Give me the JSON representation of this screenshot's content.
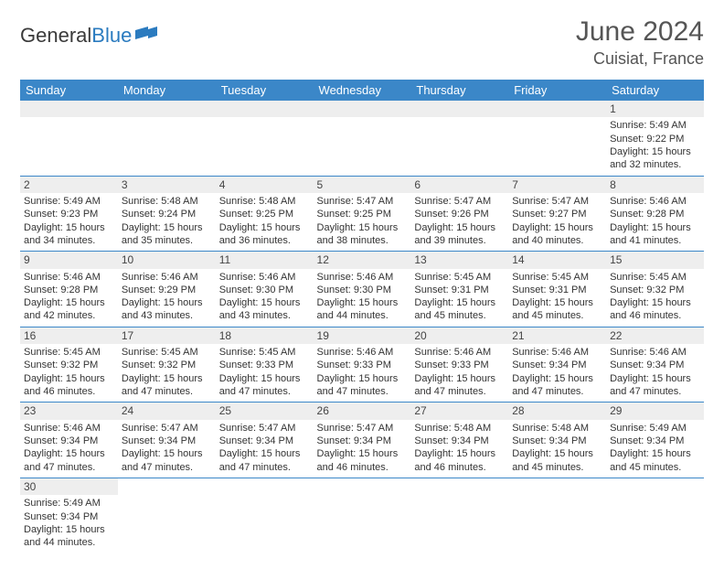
{
  "brand": {
    "general": "General",
    "blue": "Blue"
  },
  "title": {
    "month": "June 2024",
    "location": "Cuisiat, France"
  },
  "colors": {
    "header_bg": "#3b87c8",
    "header_text": "#ffffff",
    "daynum_bg": "#eeeeee",
    "cell_border": "#3b87c8",
    "logo_blue": "#2b7bbf"
  },
  "weekdays": [
    "Sunday",
    "Monday",
    "Tuesday",
    "Wednesday",
    "Thursday",
    "Friday",
    "Saturday"
  ],
  "weeks": [
    [
      {
        "blank": true
      },
      {
        "blank": true
      },
      {
        "blank": true
      },
      {
        "blank": true
      },
      {
        "blank": true
      },
      {
        "blank": true
      },
      {
        "day": "1",
        "sunrise": "Sunrise: 5:49 AM",
        "sunset": "Sunset: 9:22 PM",
        "daylight1": "Daylight: 15 hours",
        "daylight2": "and 32 minutes."
      }
    ],
    [
      {
        "day": "2",
        "sunrise": "Sunrise: 5:49 AM",
        "sunset": "Sunset: 9:23 PM",
        "daylight1": "Daylight: 15 hours",
        "daylight2": "and 34 minutes."
      },
      {
        "day": "3",
        "sunrise": "Sunrise: 5:48 AM",
        "sunset": "Sunset: 9:24 PM",
        "daylight1": "Daylight: 15 hours",
        "daylight2": "and 35 minutes."
      },
      {
        "day": "4",
        "sunrise": "Sunrise: 5:48 AM",
        "sunset": "Sunset: 9:25 PM",
        "daylight1": "Daylight: 15 hours",
        "daylight2": "and 36 minutes."
      },
      {
        "day": "5",
        "sunrise": "Sunrise: 5:47 AM",
        "sunset": "Sunset: 9:25 PM",
        "daylight1": "Daylight: 15 hours",
        "daylight2": "and 38 minutes."
      },
      {
        "day": "6",
        "sunrise": "Sunrise: 5:47 AM",
        "sunset": "Sunset: 9:26 PM",
        "daylight1": "Daylight: 15 hours",
        "daylight2": "and 39 minutes."
      },
      {
        "day": "7",
        "sunrise": "Sunrise: 5:47 AM",
        "sunset": "Sunset: 9:27 PM",
        "daylight1": "Daylight: 15 hours",
        "daylight2": "and 40 minutes."
      },
      {
        "day": "8",
        "sunrise": "Sunrise: 5:46 AM",
        "sunset": "Sunset: 9:28 PM",
        "daylight1": "Daylight: 15 hours",
        "daylight2": "and 41 minutes."
      }
    ],
    [
      {
        "day": "9",
        "sunrise": "Sunrise: 5:46 AM",
        "sunset": "Sunset: 9:28 PM",
        "daylight1": "Daylight: 15 hours",
        "daylight2": "and 42 minutes."
      },
      {
        "day": "10",
        "sunrise": "Sunrise: 5:46 AM",
        "sunset": "Sunset: 9:29 PM",
        "daylight1": "Daylight: 15 hours",
        "daylight2": "and 43 minutes."
      },
      {
        "day": "11",
        "sunrise": "Sunrise: 5:46 AM",
        "sunset": "Sunset: 9:30 PM",
        "daylight1": "Daylight: 15 hours",
        "daylight2": "and 43 minutes."
      },
      {
        "day": "12",
        "sunrise": "Sunrise: 5:46 AM",
        "sunset": "Sunset: 9:30 PM",
        "daylight1": "Daylight: 15 hours",
        "daylight2": "and 44 minutes."
      },
      {
        "day": "13",
        "sunrise": "Sunrise: 5:45 AM",
        "sunset": "Sunset: 9:31 PM",
        "daylight1": "Daylight: 15 hours",
        "daylight2": "and 45 minutes."
      },
      {
        "day": "14",
        "sunrise": "Sunrise: 5:45 AM",
        "sunset": "Sunset: 9:31 PM",
        "daylight1": "Daylight: 15 hours",
        "daylight2": "and 45 minutes."
      },
      {
        "day": "15",
        "sunrise": "Sunrise: 5:45 AM",
        "sunset": "Sunset: 9:32 PM",
        "daylight1": "Daylight: 15 hours",
        "daylight2": "and 46 minutes."
      }
    ],
    [
      {
        "day": "16",
        "sunrise": "Sunrise: 5:45 AM",
        "sunset": "Sunset: 9:32 PM",
        "daylight1": "Daylight: 15 hours",
        "daylight2": "and 46 minutes."
      },
      {
        "day": "17",
        "sunrise": "Sunrise: 5:45 AM",
        "sunset": "Sunset: 9:32 PM",
        "daylight1": "Daylight: 15 hours",
        "daylight2": "and 47 minutes."
      },
      {
        "day": "18",
        "sunrise": "Sunrise: 5:45 AM",
        "sunset": "Sunset: 9:33 PM",
        "daylight1": "Daylight: 15 hours",
        "daylight2": "and 47 minutes."
      },
      {
        "day": "19",
        "sunrise": "Sunrise: 5:46 AM",
        "sunset": "Sunset: 9:33 PM",
        "daylight1": "Daylight: 15 hours",
        "daylight2": "and 47 minutes."
      },
      {
        "day": "20",
        "sunrise": "Sunrise: 5:46 AM",
        "sunset": "Sunset: 9:33 PM",
        "daylight1": "Daylight: 15 hours",
        "daylight2": "and 47 minutes."
      },
      {
        "day": "21",
        "sunrise": "Sunrise: 5:46 AM",
        "sunset": "Sunset: 9:34 PM",
        "daylight1": "Daylight: 15 hours",
        "daylight2": "and 47 minutes."
      },
      {
        "day": "22",
        "sunrise": "Sunrise: 5:46 AM",
        "sunset": "Sunset: 9:34 PM",
        "daylight1": "Daylight: 15 hours",
        "daylight2": "and 47 minutes."
      }
    ],
    [
      {
        "day": "23",
        "sunrise": "Sunrise: 5:46 AM",
        "sunset": "Sunset: 9:34 PM",
        "daylight1": "Daylight: 15 hours",
        "daylight2": "and 47 minutes."
      },
      {
        "day": "24",
        "sunrise": "Sunrise: 5:47 AM",
        "sunset": "Sunset: 9:34 PM",
        "daylight1": "Daylight: 15 hours",
        "daylight2": "and 47 minutes."
      },
      {
        "day": "25",
        "sunrise": "Sunrise: 5:47 AM",
        "sunset": "Sunset: 9:34 PM",
        "daylight1": "Daylight: 15 hours",
        "daylight2": "and 47 minutes."
      },
      {
        "day": "26",
        "sunrise": "Sunrise: 5:47 AM",
        "sunset": "Sunset: 9:34 PM",
        "daylight1": "Daylight: 15 hours",
        "daylight2": "and 46 minutes."
      },
      {
        "day": "27",
        "sunrise": "Sunrise: 5:48 AM",
        "sunset": "Sunset: 9:34 PM",
        "daylight1": "Daylight: 15 hours",
        "daylight2": "and 46 minutes."
      },
      {
        "day": "28",
        "sunrise": "Sunrise: 5:48 AM",
        "sunset": "Sunset: 9:34 PM",
        "daylight1": "Daylight: 15 hours",
        "daylight2": "and 45 minutes."
      },
      {
        "day": "29",
        "sunrise": "Sunrise: 5:49 AM",
        "sunset": "Sunset: 9:34 PM",
        "daylight1": "Daylight: 15 hours",
        "daylight2": "and 45 minutes."
      }
    ],
    [
      {
        "day": "30",
        "sunrise": "Sunrise: 5:49 AM",
        "sunset": "Sunset: 9:34 PM",
        "daylight1": "Daylight: 15 hours",
        "daylight2": "and 44 minutes."
      },
      {
        "blank": true
      },
      {
        "blank": true
      },
      {
        "blank": true
      },
      {
        "blank": true
      },
      {
        "blank": true
      },
      {
        "blank": true
      }
    ]
  ]
}
